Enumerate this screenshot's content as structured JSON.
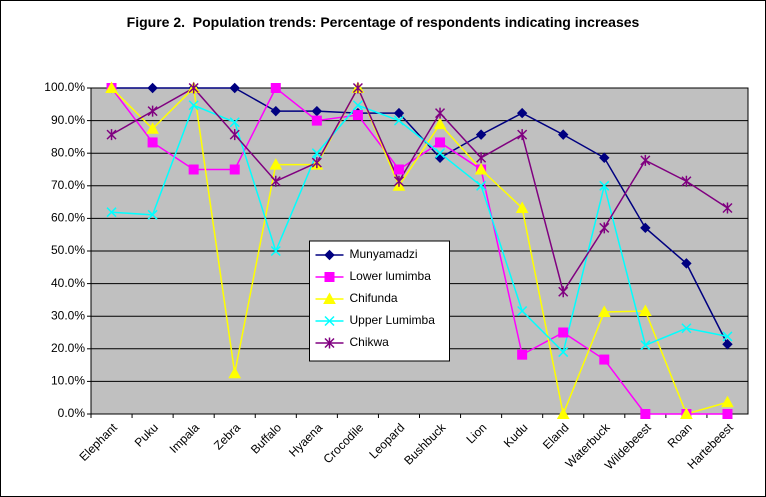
{
  "chart_data": {
    "type": "line",
    "title": "Figure 2.  Population trends: Percentage of respondents indicating increases",
    "categories": [
      "Elephant",
      "Puku",
      "Impala",
      "Zebra",
      "Buffalo",
      "Hyaena",
      "Crocodile",
      "Leopard",
      "Bushbuck",
      "Lion",
      "Kudu",
      "Eland",
      "Waterbuck",
      "Wildebeest",
      "Roan",
      "Hartebeest"
    ],
    "series": [
      {
        "name": "Munyamadzi",
        "color": "#000080",
        "marker": "diamond",
        "values": [
          100,
          100,
          100,
          100,
          92.9,
          92.9,
          92.3,
          92.3,
          78.6,
          85.7,
          92.3,
          85.7,
          78.6,
          57.1,
          46.2,
          21.4
        ]
      },
      {
        "name": "Lower lumimba",
        "color": "#ff00ff",
        "marker": "square",
        "values": [
          100,
          83.3,
          75,
          75,
          100,
          90,
          91.7,
          75,
          83.3,
          75,
          18.2,
          25,
          16.7,
          0,
          0,
          0
        ]
      },
      {
        "name": "Chifunda",
        "color": "#ffff00",
        "marker": "triangle",
        "values": [
          100,
          87.5,
          100,
          12.5,
          76.5,
          76.5,
          100,
          70,
          88.9,
          75,
          63.2,
          0,
          31.3,
          31.6,
          0,
          3.6
        ]
      },
      {
        "name": "Upper Lumimba",
        "color": "#00ffff",
        "marker": "x",
        "values": [
          61.9,
          61.1,
          94.7,
          89.5,
          50,
          80,
          94.7,
          90,
          80,
          70,
          31.6,
          19,
          70,
          21.1,
          26.3,
          23.8
        ]
      },
      {
        "name": "Chikwa",
        "color": "#800080",
        "marker": "star",
        "values": [
          85.7,
          92.9,
          100,
          85.7,
          71.4,
          77.1,
          100,
          71.4,
          92.3,
          78.6,
          85.7,
          37.5,
          57.1,
          77.8,
          71.4,
          63.2
        ]
      }
    ],
    "ylim": [
      0,
      100
    ],
    "yticks": [
      {
        "value": 0,
        "label": "0.0%"
      },
      {
        "value": 10,
        "label": "10.0%"
      },
      {
        "value": 20,
        "label": "20.0%"
      },
      {
        "value": 30,
        "label": "30.0%"
      },
      {
        "value": 40,
        "label": "40.0%"
      },
      {
        "value": 50,
        "label": "50.0%"
      },
      {
        "value": 60,
        "label": "60.0%"
      },
      {
        "value": 70,
        "label": "70.0%"
      },
      {
        "value": 80,
        "label": "80.0%"
      },
      {
        "value": 90,
        "label": "90.0%"
      },
      {
        "value": 100,
        "label": "100.0%"
      }
    ],
    "grid": true,
    "plot_background": "#c0c0c0",
    "legend_position": "center"
  }
}
